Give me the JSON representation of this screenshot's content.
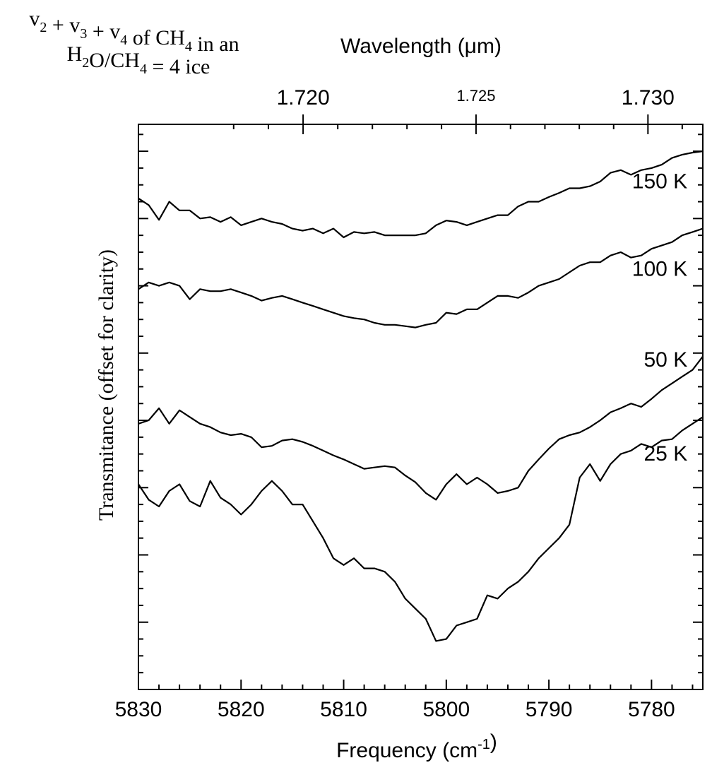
{
  "chart_data": {
    "type": "line",
    "title_lines": [
      {
        "parts": [
          {
            "t": "v",
            "s": ""
          },
          {
            "t": "2",
            "s": "sub"
          },
          {
            "t": " + v",
            "s": ""
          },
          {
            "t": "3",
            "s": "sub"
          },
          {
            "t": " + v",
            "s": ""
          },
          {
            "t": "4",
            "s": "sub"
          },
          {
            "t": " of CH",
            "s": ""
          },
          {
            "t": "4",
            "s": "sub"
          },
          {
            "t": " in an",
            "s": ""
          }
        ]
      },
      {
        "parts": [
          {
            "t": "H",
            "s": ""
          },
          {
            "t": "2",
            "s": "sub"
          },
          {
            "t": "O/CH",
            "s": ""
          },
          {
            "t": "4",
            "s": "sub"
          },
          {
            "t": " = 4 ice",
            "s": ""
          }
        ]
      }
    ],
    "xlabel": "Frequency (cm-1)",
    "xlabel_parts": [
      {
        "t": "Frequency (cm",
        "s": ""
      },
      {
        "t": "-1",
        "s": "sup"
      },
      {
        "t": ")",
        "s": ""
      }
    ],
    "x2label": "Wavelength (μm)",
    "ylabel": "Transmitance (offset for clarity)",
    "xlim": [
      5830,
      5775
    ],
    "x_ticks": [
      5830,
      5820,
      5810,
      5800,
      5790,
      5780
    ],
    "x2_ticks": [
      {
        "value": 1.72,
        "label": "1.720",
        "size": "large"
      },
      {
        "value": 1.725,
        "label": "1.725",
        "size": "small"
      },
      {
        "value": 1.73,
        "label": "1.730",
        "size": "large"
      }
    ],
    "ylim": [
      0,
      8.4
    ],
    "y_major_ticks": [
      0,
      1,
      2,
      3,
      4,
      5,
      6,
      7,
      8
    ],
    "y_tick_labels_shown": false,
    "grid": false,
    "series": [
      {
        "name": "150 K",
        "x": [
          5830,
          5829,
          5828,
          5827,
          5826,
          5825,
          5824,
          5823,
          5822,
          5821,
          5820,
          5819,
          5818,
          5817,
          5816,
          5815,
          5814,
          5813,
          5812,
          5811,
          5810,
          5809,
          5808,
          5807,
          5806,
          5805,
          5804,
          5803,
          5802,
          5801,
          5800,
          5799,
          5798,
          5797,
          5796,
          5795,
          5794,
          5793,
          5792,
          5791,
          5790,
          5789,
          5788,
          5787,
          5786,
          5785,
          5784,
          5783,
          5782,
          5781,
          5780,
          5779,
          5778,
          5777,
          5776,
          5775
        ],
        "y": [
          7.3,
          7.2,
          6.98,
          7.25,
          7.12,
          7.12,
          7.0,
          7.02,
          6.95,
          7.02,
          6.9,
          6.95,
          7.0,
          6.95,
          6.92,
          6.85,
          6.82,
          6.85,
          6.78,
          6.85,
          6.72,
          6.8,
          6.78,
          6.8,
          6.75,
          6.75,
          6.75,
          6.75,
          6.78,
          6.9,
          6.97,
          6.95,
          6.9,
          6.95,
          7.0,
          7.05,
          7.05,
          7.18,
          7.25,
          7.25,
          7.32,
          7.38,
          7.45,
          7.45,
          7.48,
          7.55,
          7.68,
          7.72,
          7.65,
          7.72,
          7.75,
          7.8,
          7.9,
          7.95,
          7.98,
          8.0
        ]
      },
      {
        "name": "100 K",
        "x": [
          5830,
          5829,
          5828,
          5827,
          5826,
          5825,
          5824,
          5823,
          5822,
          5821,
          5820,
          5819,
          5818,
          5817,
          5816,
          5815,
          5814,
          5813,
          5812,
          5811,
          5810,
          5809,
          5808,
          5807,
          5806,
          5805,
          5804,
          5803,
          5802,
          5801,
          5800,
          5799,
          5798,
          5797,
          5796,
          5795,
          5794,
          5793,
          5792,
          5791,
          5790,
          5789,
          5788,
          5787,
          5786,
          5785,
          5784,
          5783,
          5782,
          5781,
          5780,
          5779,
          5778,
          5777,
          5776,
          5775
        ],
        "y": [
          5.95,
          6.05,
          6.0,
          6.05,
          6.0,
          5.8,
          5.95,
          5.92,
          5.92,
          5.95,
          5.9,
          5.85,
          5.78,
          5.82,
          5.85,
          5.8,
          5.75,
          5.7,
          5.65,
          5.6,
          5.55,
          5.52,
          5.5,
          5.45,
          5.42,
          5.42,
          5.4,
          5.38,
          5.42,
          5.45,
          5.6,
          5.58,
          5.65,
          5.65,
          5.75,
          5.85,
          5.85,
          5.82,
          5.9,
          6.0,
          6.05,
          6.1,
          6.2,
          6.3,
          6.35,
          6.35,
          6.45,
          6.5,
          6.42,
          6.45,
          6.55,
          6.6,
          6.65,
          6.75,
          6.8,
          6.85
        ]
      },
      {
        "name": "50 K",
        "x": [
          5830,
          5829,
          5828,
          5827,
          5826,
          5825,
          5824,
          5823,
          5822,
          5821,
          5820,
          5819,
          5818,
          5817,
          5816,
          5815,
          5814,
          5813,
          5812,
          5811,
          5810,
          5809,
          5808,
          5807,
          5806,
          5805,
          5804,
          5803,
          5802,
          5801,
          5800,
          5799,
          5798,
          5797,
          5796,
          5795,
          5794,
          5793,
          5792,
          5791,
          5790,
          5789,
          5788,
          5787,
          5786,
          5785,
          5784,
          5783,
          5782,
          5781,
          5780,
          5779,
          5778,
          5777,
          5776,
          5775
        ],
        "y": [
          3.95,
          4.0,
          4.18,
          3.95,
          4.15,
          4.05,
          3.95,
          3.9,
          3.82,
          3.78,
          3.8,
          3.75,
          3.6,
          3.62,
          3.7,
          3.72,
          3.68,
          3.62,
          3.55,
          3.48,
          3.42,
          3.35,
          3.28,
          3.3,
          3.32,
          3.3,
          3.18,
          3.08,
          2.92,
          2.82,
          3.05,
          3.2,
          3.05,
          3.15,
          3.05,
          2.92,
          2.95,
          3.0,
          3.25,
          3.42,
          3.58,
          3.72,
          3.78,
          3.82,
          3.9,
          4.0,
          4.12,
          4.18,
          4.25,
          4.2,
          4.32,
          4.45,
          4.55,
          4.65,
          4.75,
          4.95
        ]
      },
      {
        "name": "25 K",
        "x": [
          5830,
          5829,
          5828,
          5827,
          5826,
          5825,
          5824,
          5823,
          5822,
          5821,
          5820,
          5819,
          5818,
          5817,
          5816,
          5815,
          5814,
          5813,
          5812,
          5811,
          5810,
          5809,
          5808,
          5807,
          5806,
          5805,
          5804,
          5803,
          5802,
          5801,
          5800,
          5799,
          5798,
          5797,
          5796,
          5795,
          5794,
          5793,
          5792,
          5791,
          5790,
          5789,
          5788,
          5787,
          5786,
          5785,
          5784,
          5783,
          5782,
          5781,
          5780,
          5779,
          5778,
          5777,
          5776,
          5775
        ],
        "y": [
          3.05,
          2.82,
          2.72,
          2.95,
          3.05,
          2.8,
          2.72,
          3.1,
          2.85,
          2.75,
          2.6,
          2.75,
          2.95,
          3.1,
          2.95,
          2.75,
          2.75,
          2.5,
          2.25,
          1.95,
          1.85,
          1.95,
          1.8,
          1.8,
          1.75,
          1.6,
          1.35,
          1.2,
          1.05,
          0.72,
          0.75,
          0.95,
          1.0,
          1.05,
          1.4,
          1.35,
          1.5,
          1.6,
          1.75,
          1.95,
          2.1,
          2.25,
          2.45,
          3.15,
          3.35,
          3.1,
          3.35,
          3.5,
          3.55,
          3.65,
          3.6,
          3.7,
          3.72,
          3.85,
          3.95,
          4.05
        ]
      }
    ],
    "series_labels": [
      {
        "text": "150 K",
        "x": 5776.5,
        "y": 7.45
      },
      {
        "text": "100 K",
        "x": 5776.5,
        "y": 6.15
      },
      {
        "text": "50 K",
        "x": 5776.5,
        "y": 4.8
      },
      {
        "text": "25 K",
        "x": 5776.5,
        "y": 3.4
      }
    ]
  }
}
